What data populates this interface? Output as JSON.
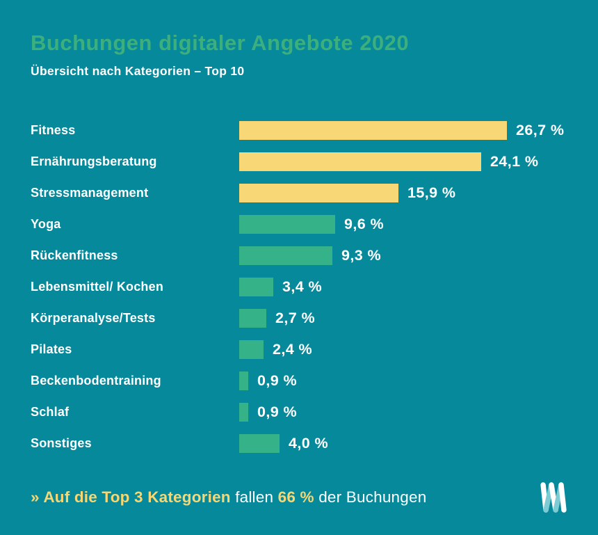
{
  "page": {
    "title": "Buchungen digitaler Angebote 2020",
    "subtitle": "Übersicht nach Kategorien – Top 10"
  },
  "chart_data": {
    "type": "bar",
    "orientation": "horizontal",
    "title": "Buchungen digitaler Angebote 2020",
    "subtitle": "Übersicht nach Kategorien – Top 10",
    "unit": "%",
    "xlim": [
      0,
      26.7
    ],
    "grid": false,
    "legend": "none",
    "categories": [
      "Fitness",
      "Ernährungsberatung",
      "Stressmanagement",
      "Yoga",
      "Rückenfitness",
      "Lebensmittel/ Kochen",
      "Körperanalyse/Tests",
      "Pilates",
      "Beckenbodentraining",
      "Schlaf",
      "Sonstiges"
    ],
    "values": [
      26.7,
      24.1,
      15.9,
      9.6,
      9.3,
      3.4,
      2.7,
      2.4,
      0.9,
      0.9,
      4.0
    ],
    "value_labels": [
      "26,7 %",
      "24,1 %",
      "15,9 %",
      "9,6 %",
      "9,3 %",
      "3,4 %",
      "2,7 %",
      "2,4 %",
      "0,9 %",
      "0,9 %",
      "4,0 %"
    ],
    "bar_colors": [
      "#f8d876",
      "#f8d876",
      "#f8d876",
      "#35b287",
      "#35b287",
      "#35b287",
      "#35b287",
      "#35b287",
      "#35b287",
      "#35b287",
      "#35b287"
    ]
  },
  "colors": {
    "background": "#06899b",
    "title_green": "#3caf7d",
    "bar_yellow": "#f8d876",
    "bar_green": "#35b287",
    "text_white": "#ffffff",
    "highlight_yellow": "#f7d774",
    "logo_light_teal": "#7dccd4"
  },
  "footer": {
    "highlight_lead": "» Auf die Top 3 Kategorien",
    "text_mid": "fallen",
    "highlight_value": "66 %",
    "text_end": "der Buchungen",
    "logo_icon": "m-ribbon-logo"
  }
}
